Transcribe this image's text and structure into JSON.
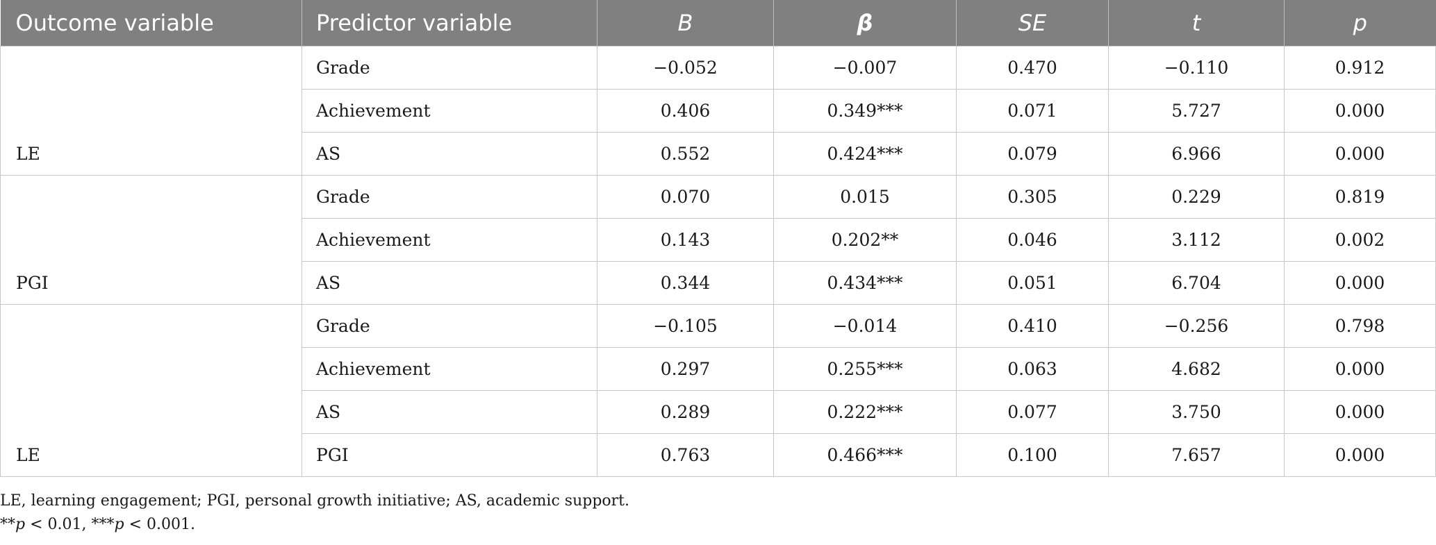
{
  "table": {
    "columns": [
      "Outcome variable",
      "Predictor variable",
      "B",
      "β",
      "SE",
      "t",
      "p"
    ],
    "groups": [
      {
        "outcome": "LE",
        "rows": [
          {
            "predictor": "Grade",
            "B": "−0.052",
            "beta": "−0.007",
            "SE": "0.470",
            "t": "−0.110",
            "p": "0.912"
          },
          {
            "predictor": "Achievement",
            "B": "0.406",
            "beta": "0.349***",
            "SE": "0.071",
            "t": "5.727",
            "p": "0.000"
          },
          {
            "predictor": "AS",
            "B": "0.552",
            "beta": "0.424***",
            "SE": "0.079",
            "t": "6.966",
            "p": "0.000"
          }
        ]
      },
      {
        "outcome": "PGI",
        "rows": [
          {
            "predictor": "Grade",
            "B": "0.070",
            "beta": "0.015",
            "SE": "0.305",
            "t": "0.229",
            "p": "0.819"
          },
          {
            "predictor": "Achievement",
            "B": "0.143",
            "beta": "0.202**",
            "SE": "0.046",
            "t": "3.112",
            "p": "0.002"
          },
          {
            "predictor": "AS",
            "B": "0.344",
            "beta": "0.434***",
            "SE": "0.051",
            "t": "6.704",
            "p": "0.000"
          }
        ]
      },
      {
        "outcome": "LE",
        "rows": [
          {
            "predictor": "Grade",
            "B": "−0.105",
            "beta": "−0.014",
            "SE": "0.410",
            "t": "−0.256",
            "p": "0.798"
          },
          {
            "predictor": "Achievement",
            "B": "0.297",
            "beta": "0.255***",
            "SE": "0.063",
            "t": "4.682",
            "p": "0.000"
          },
          {
            "predictor": "AS",
            "B": "0.289",
            "beta": "0.222***",
            "SE": "0.077",
            "t": "3.750",
            "p": "0.000"
          },
          {
            "predictor": "PGI",
            "B": "0.763",
            "beta": "0.466***",
            "SE": "0.100",
            "t": "7.657",
            "p": "0.000"
          }
        ]
      }
    ]
  },
  "footnotes": {
    "abbreviations": "LE, learning engagement; PGI, personal growth initiative; AS, academic support.",
    "significance": {
      "part1_stars": "**",
      "part1_p": "p",
      "part1_rest": " < 0.01, ",
      "part2_stars": "***",
      "part2_p": "p",
      "part2_rest": " < 0.001."
    }
  },
  "colors": {
    "header_background": "#808080",
    "header_text": "#ffffff",
    "grid_lines": "#c8c8c8"
  }
}
